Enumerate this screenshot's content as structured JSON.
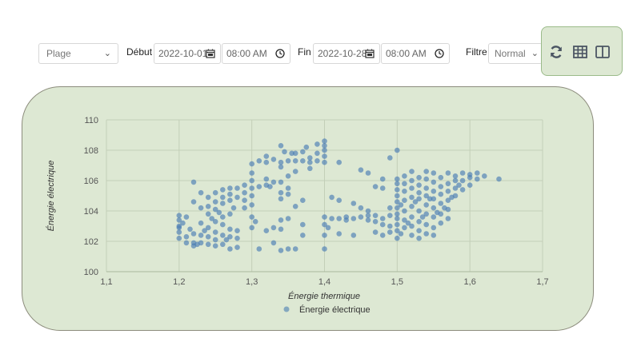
{
  "toolbar": {
    "range_select": "Plage",
    "start_label": "Début",
    "start_date": "2022-10-01",
    "start_time": "08:00 AM",
    "end_label": "Fin",
    "end_date": "2022-10-28",
    "end_time": "08:00 AM",
    "filter_label": "Filtre",
    "filter_value": "Normal"
  },
  "colors": {
    "accent_panel": "#dde8d3",
    "point": "#4a7db3",
    "icon": "#4b5563"
  },
  "icons": [
    "calendar-icon",
    "clock-icon",
    "refresh-icon",
    "table-icon",
    "split-view-icon"
  ],
  "chart_data": {
    "type": "scatter",
    "title": "",
    "xlabel": "Énergie thermique",
    "ylabel": "Énergie électrique",
    "xlim": [
      1.1,
      1.7
    ],
    "ylim": [
      100,
      110
    ],
    "x_ticks": [
      "1,1",
      "1,2",
      "1,3",
      "1,4",
      "1,5",
      "1,6",
      "1,7"
    ],
    "y_ticks": [
      "100",
      "102",
      "104",
      "106",
      "108",
      "110"
    ],
    "grid": true,
    "legend_position": "bottom",
    "series": [
      {
        "name": "Énergie électrique",
        "points": [
          [
            1.2,
            102.2
          ],
          [
            1.2,
            102.6
          ],
          [
            1.2,
            103.0
          ],
          [
            1.2,
            103.4
          ],
          [
            1.2,
            103.7
          ],
          [
            1.2,
            102.9
          ],
          [
            1.205,
            103.2
          ],
          [
            1.21,
            101.9
          ],
          [
            1.21,
            102.3
          ],
          [
            1.21,
            103.6
          ],
          [
            1.215,
            102.8
          ],
          [
            1.22,
            101.7
          ],
          [
            1.22,
            101.9
          ],
          [
            1.22,
            102.5
          ],
          [
            1.22,
            104.6
          ],
          [
            1.22,
            105.9
          ],
          [
            1.225,
            101.8
          ],
          [
            1.23,
            101.9
          ],
          [
            1.23,
            102.4
          ],
          [
            1.23,
            103.2
          ],
          [
            1.23,
            104.2
          ],
          [
            1.23,
            105.2
          ],
          [
            1.235,
            102.7
          ],
          [
            1.24,
            101.8
          ],
          [
            1.24,
            102.3
          ],
          [
            1.24,
            102.9
          ],
          [
            1.24,
            103.8
          ],
          [
            1.24,
            104.3
          ],
          [
            1.24,
            104.9
          ],
          [
            1.245,
            103.5
          ],
          [
            1.25,
            101.7
          ],
          [
            1.25,
            102.1
          ],
          [
            1.25,
            102.6
          ],
          [
            1.25,
            103.3
          ],
          [
            1.25,
            104.1
          ],
          [
            1.25,
            104.6
          ],
          [
            1.25,
            105.2
          ],
          [
            1.255,
            103.9
          ],
          [
            1.26,
            101.8
          ],
          [
            1.26,
            102.4
          ],
          [
            1.26,
            103.1
          ],
          [
            1.26,
            103.6
          ],
          [
            1.26,
            104.5
          ],
          [
            1.26,
            104.9
          ],
          [
            1.26,
            105.4
          ],
          [
            1.265,
            102.1
          ],
          [
            1.27,
            101.5
          ],
          [
            1.27,
            102.3
          ],
          [
            1.27,
            102.8
          ],
          [
            1.27,
            103.8
          ],
          [
            1.27,
            104.7
          ],
          [
            1.27,
            105.1
          ],
          [
            1.27,
            105.5
          ],
          [
            1.275,
            104.2
          ],
          [
            1.28,
            101.6
          ],
          [
            1.28,
            102.2
          ],
          [
            1.28,
            102.7
          ],
          [
            1.28,
            104.9
          ],
          [
            1.28,
            105.5
          ],
          [
            1.29,
            104.2
          ],
          [
            1.29,
            104.7
          ],
          [
            1.29,
            105.2
          ],
          [
            1.29,
            105.7
          ],
          [
            1.3,
            102.9
          ],
          [
            1.3,
            103.6
          ],
          [
            1.3,
            104.4
          ],
          [
            1.3,
            105.0
          ],
          [
            1.3,
            105.5
          ],
          [
            1.3,
            106.0
          ],
          [
            1.3,
            106.5
          ],
          [
            1.3,
            107.1
          ],
          [
            1.305,
            103.3
          ],
          [
            1.31,
            101.5
          ],
          [
            1.31,
            105.6
          ],
          [
            1.31,
            107.3
          ],
          [
            1.32,
            102.7
          ],
          [
            1.32,
            105.7
          ],
          [
            1.32,
            106.1
          ],
          [
            1.32,
            107.2
          ],
          [
            1.32,
            107.6
          ],
          [
            1.325,
            105.6
          ],
          [
            1.33,
            101.9
          ],
          [
            1.33,
            102.9
          ],
          [
            1.33,
            105.9
          ],
          [
            1.33,
            107.4
          ],
          [
            1.34,
            101.4
          ],
          [
            1.34,
            102.8
          ],
          [
            1.34,
            103.4
          ],
          [
            1.34,
            104.8
          ],
          [
            1.34,
            105.2
          ],
          [
            1.34,
            105.9
          ],
          [
            1.34,
            106.9
          ],
          [
            1.34,
            107.2
          ],
          [
            1.34,
            108.3
          ],
          [
            1.345,
            107.9
          ],
          [
            1.35,
            101.5
          ],
          [
            1.35,
            103.5
          ],
          [
            1.35,
            105.1
          ],
          [
            1.35,
            105.5
          ],
          [
            1.35,
            106.3
          ],
          [
            1.35,
            107.3
          ],
          [
            1.355,
            107.8
          ],
          [
            1.36,
            101.5
          ],
          [
            1.36,
            104.3
          ],
          [
            1.36,
            106.6
          ],
          [
            1.36,
            107.3
          ],
          [
            1.36,
            107.8
          ],
          [
            1.37,
            102.4
          ],
          [
            1.37,
            103.1
          ],
          [
            1.37,
            104.7
          ],
          [
            1.37,
            107.3
          ],
          [
            1.37,
            107.9
          ],
          [
            1.375,
            108.2
          ],
          [
            1.38,
            106.8
          ],
          [
            1.38,
            107.2
          ],
          [
            1.38,
            107.5
          ],
          [
            1.39,
            107.3
          ],
          [
            1.39,
            108.4
          ],
          [
            1.39,
            107.8
          ],
          [
            1.4,
            101.5
          ],
          [
            1.4,
            102.4
          ],
          [
            1.4,
            103.1
          ],
          [
            1.4,
            103.6
          ],
          [
            1.4,
            107.2
          ],
          [
            1.4,
            107.6
          ],
          [
            1.4,
            108.0
          ],
          [
            1.4,
            108.3
          ],
          [
            1.4,
            108.6
          ],
          [
            1.405,
            102.9
          ],
          [
            1.41,
            103.5
          ],
          [
            1.41,
            104.9
          ],
          [
            1.42,
            102.5
          ],
          [
            1.42,
            103.5
          ],
          [
            1.42,
            104.7
          ],
          [
            1.42,
            107.2
          ],
          [
            1.43,
            103.4
          ],
          [
            1.43,
            103.6
          ],
          [
            1.44,
            103.5
          ],
          [
            1.44,
            104.5
          ],
          [
            1.44,
            102.4
          ],
          [
            1.45,
            103.6
          ],
          [
            1.45,
            104.2
          ],
          [
            1.45,
            106.7
          ],
          [
            1.46,
            103.4
          ],
          [
            1.46,
            103.7
          ],
          [
            1.46,
            104.0
          ],
          [
            1.46,
            106.5
          ],
          [
            1.47,
            102.6
          ],
          [
            1.47,
            103.3
          ],
          [
            1.47,
            103.7
          ],
          [
            1.47,
            105.6
          ],
          [
            1.48,
            102.4
          ],
          [
            1.48,
            103.1
          ],
          [
            1.48,
            103.5
          ],
          [
            1.48,
            105.5
          ],
          [
            1.48,
            106.1
          ],
          [
            1.49,
            102.6
          ],
          [
            1.49,
            103.0
          ],
          [
            1.49,
            103.7
          ],
          [
            1.49,
            104.2
          ],
          [
            1.49,
            107.5
          ],
          [
            1.5,
            102.2
          ],
          [
            1.5,
            102.7
          ],
          [
            1.5,
            103.1
          ],
          [
            1.5,
            103.5
          ],
          [
            1.5,
            103.8
          ],
          [
            1.5,
            104.2
          ],
          [
            1.5,
            104.6
          ],
          [
            1.5,
            105.0
          ],
          [
            1.5,
            105.4
          ],
          [
            1.5,
            105.8
          ],
          [
            1.5,
            106.1
          ],
          [
            1.5,
            108.0
          ],
          [
            1.505,
            102.5
          ],
          [
            1.505,
            104.4
          ],
          [
            1.51,
            102.9
          ],
          [
            1.51,
            103.4
          ],
          [
            1.51,
            104.0
          ],
          [
            1.51,
            104.7
          ],
          [
            1.51,
            105.3
          ],
          [
            1.51,
            105.8
          ],
          [
            1.51,
            106.3
          ],
          [
            1.515,
            103.2
          ],
          [
            1.52,
            102.4
          ],
          [
            1.52,
            103.0
          ],
          [
            1.52,
            103.6
          ],
          [
            1.52,
            104.3
          ],
          [
            1.52,
            104.9
          ],
          [
            1.52,
            105.5
          ],
          [
            1.52,
            106.0
          ],
          [
            1.52,
            106.6
          ],
          [
            1.525,
            104.6
          ],
          [
            1.53,
            102.2
          ],
          [
            1.53,
            102.7
          ],
          [
            1.53,
            103.3
          ],
          [
            1.53,
            104.0
          ],
          [
            1.53,
            104.8
          ],
          [
            1.53,
            105.2
          ],
          [
            1.53,
            105.7
          ],
          [
            1.53,
            106.2
          ],
          [
            1.535,
            103.6
          ],
          [
            1.54,
            102.5
          ],
          [
            1.54,
            103.1
          ],
          [
            1.54,
            103.8
          ],
          [
            1.54,
            104.4
          ],
          [
            1.54,
            105.0
          ],
          [
            1.54,
            105.5
          ],
          [
            1.54,
            106.1
          ],
          [
            1.54,
            106.6
          ],
          [
            1.545,
            104.8
          ],
          [
            1.55,
            102.4
          ],
          [
            1.55,
            102.9
          ],
          [
            1.55,
            103.6
          ],
          [
            1.55,
            104.2
          ],
          [
            1.55,
            104.8
          ],
          [
            1.55,
            105.3
          ],
          [
            1.55,
            105.9
          ],
          [
            1.55,
            106.5
          ],
          [
            1.555,
            103.9
          ],
          [
            1.56,
            103.2
          ],
          [
            1.56,
            103.8
          ],
          [
            1.56,
            104.5
          ],
          [
            1.56,
            105.1
          ],
          [
            1.56,
            105.6
          ],
          [
            1.56,
            106.2
          ],
          [
            1.565,
            104.2
          ],
          [
            1.57,
            103.5
          ],
          [
            1.57,
            104.1
          ],
          [
            1.57,
            104.7
          ],
          [
            1.57,
            105.3
          ],
          [
            1.57,
            105.8
          ],
          [
            1.57,
            106.5
          ],
          [
            1.575,
            104.9
          ],
          [
            1.58,
            105.0
          ],
          [
            1.58,
            105.5
          ],
          [
            1.58,
            106.0
          ],
          [
            1.58,
            106.3
          ],
          [
            1.585,
            105.7
          ],
          [
            1.59,
            105.4
          ],
          [
            1.59,
            106.0
          ],
          [
            1.59,
            106.5
          ],
          [
            1.6,
            105.7
          ],
          [
            1.6,
            106.2
          ],
          [
            1.6,
            106.4
          ],
          [
            1.61,
            106.1
          ],
          [
            1.61,
            106.5
          ],
          [
            1.62,
            106.3
          ],
          [
            1.64,
            106.1
          ]
        ]
      }
    ]
  }
}
